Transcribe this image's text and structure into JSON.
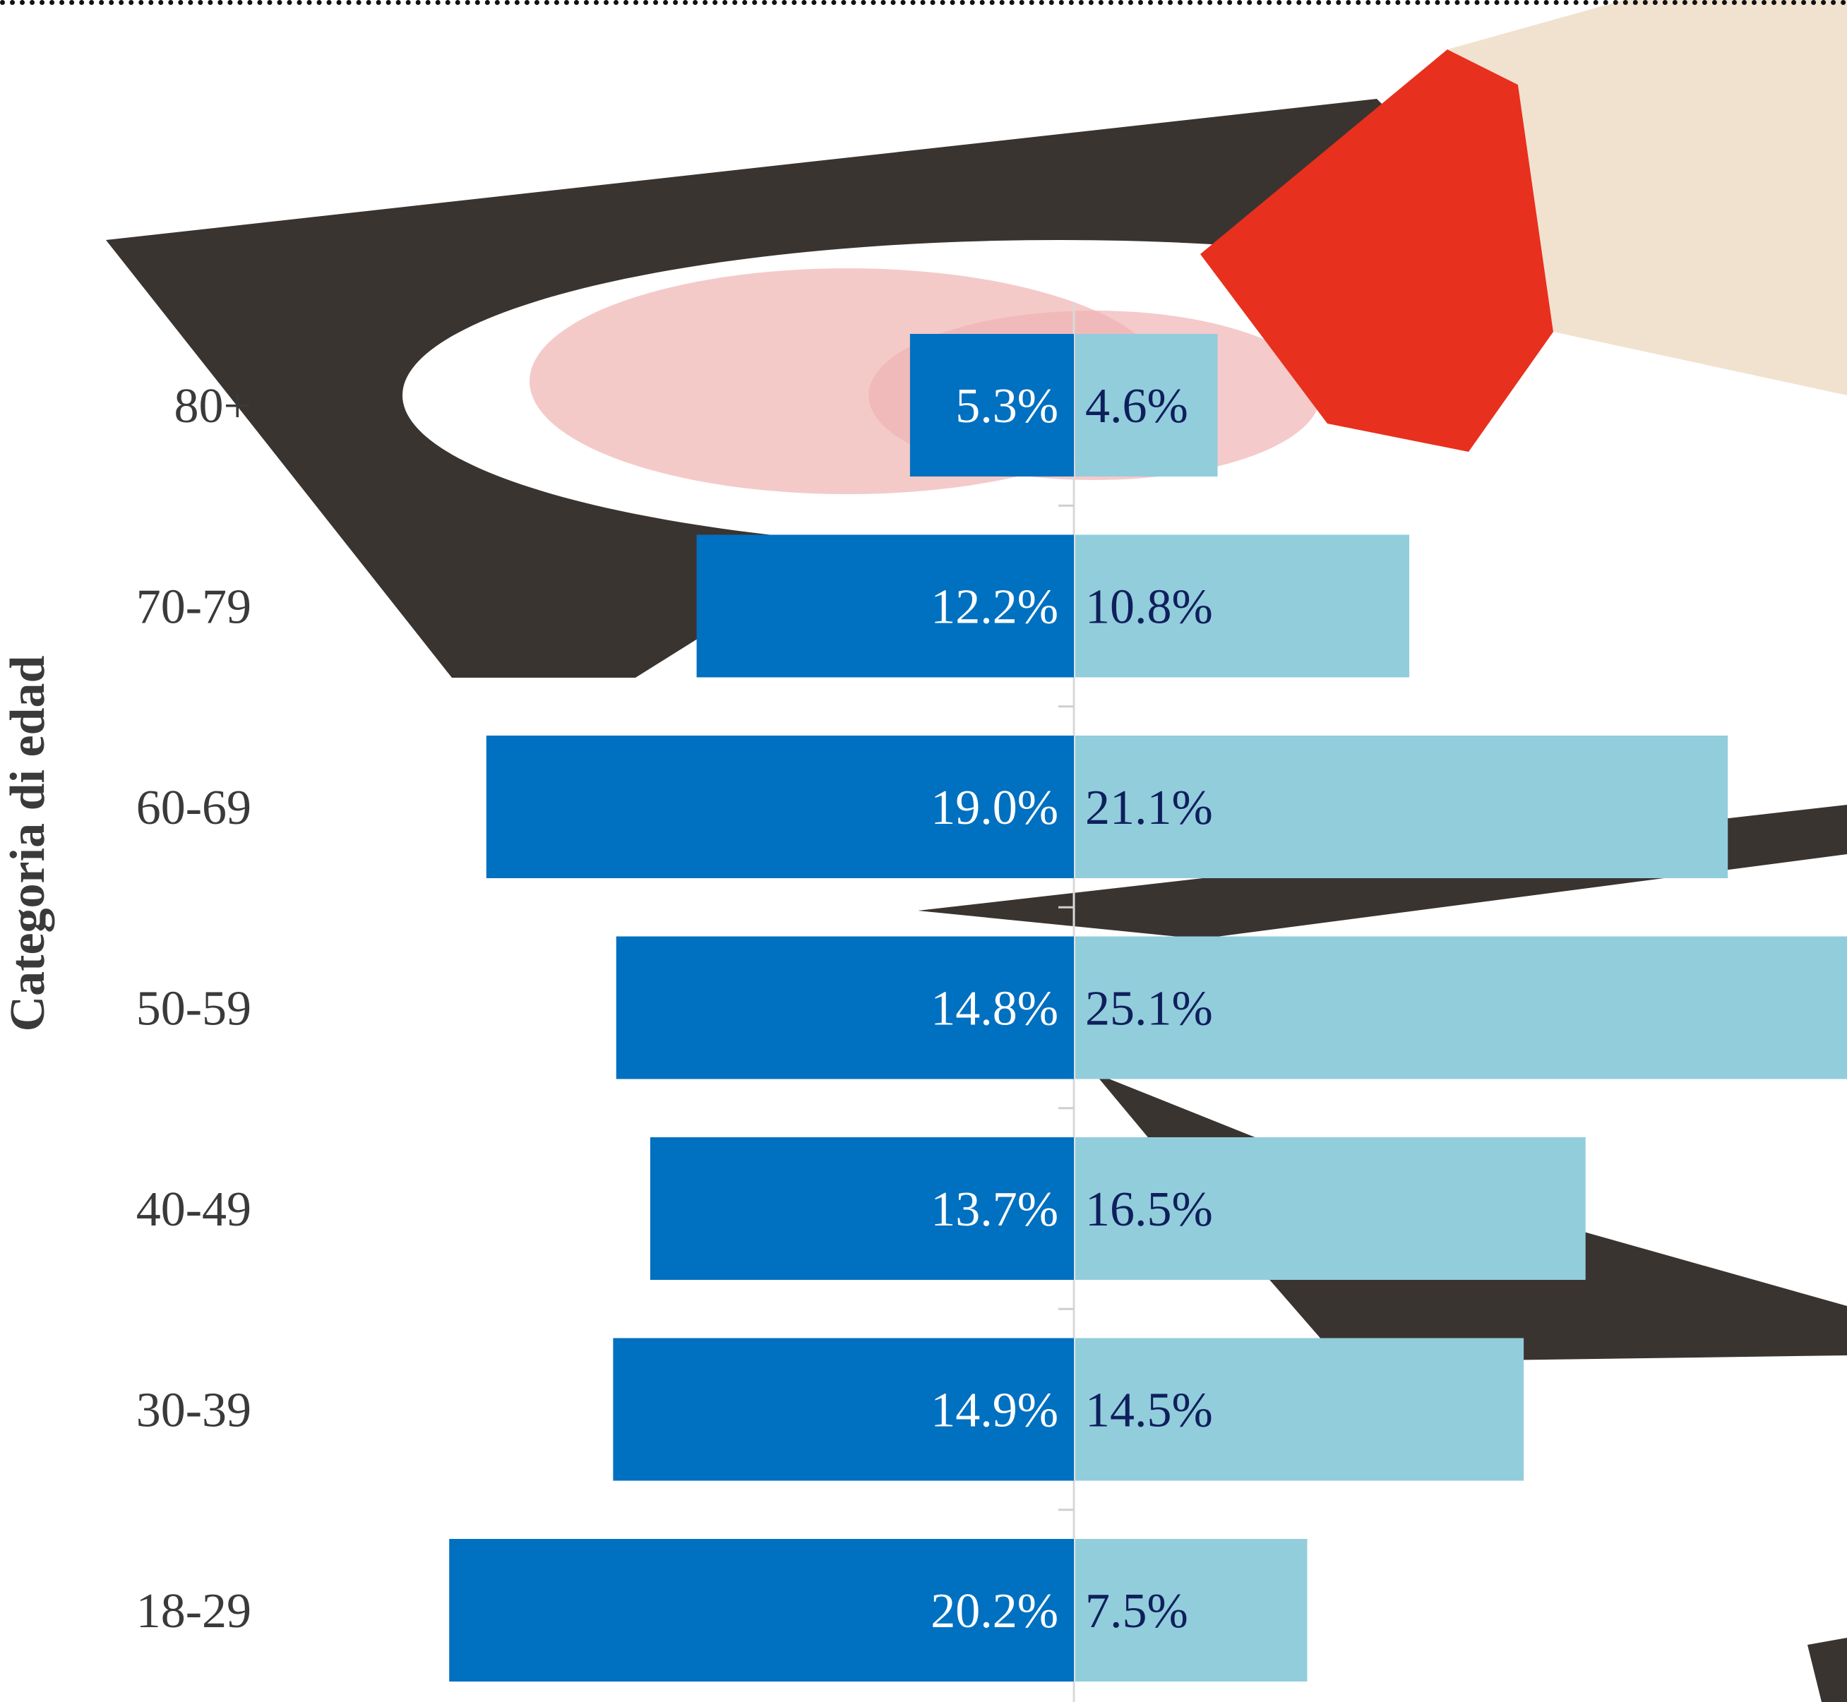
{
  "chart_data": {
    "type": "bar",
    "orientation": "horizontal",
    "layout": "diverging",
    "ylabel": "Categoria di edad",
    "categories": [
      "80+",
      "70-79",
      "60-69",
      "50-59",
      "40-49",
      "30-39",
      "18-29"
    ],
    "series": [
      {
        "values": [
          5.3,
          12.2,
          19.0,
          14.8,
          13.7,
          14.9,
          20.2
        ],
        "labels": [
          "5.3%",
          "12.2%",
          "19.0%",
          "14.8%",
          "13.7%",
          "14.9%",
          "20.2%"
        ]
      },
      {
        "values": [
          4.6,
          10.8,
          21.1,
          25.1,
          16.5,
          14.5,
          7.5
        ],
        "labels": [
          "4.6%",
          "10.8%",
          "21.1%",
          "25.1%",
          "16.5%",
          "14.5%",
          "7.5%"
        ]
      }
    ],
    "unit": "%",
    "grid": false,
    "legend": "none"
  },
  "colors": {
    "left_bar": "#0070c0",
    "right_bar": "#92cddc",
    "left_label": "#ffffff",
    "right_label": "#0f1f5c",
    "category_label": "#3a3a3a",
    "axis_title": "#3a3a3a",
    "background_photo": "ballot-paper-with-red-pencil-mark"
  }
}
